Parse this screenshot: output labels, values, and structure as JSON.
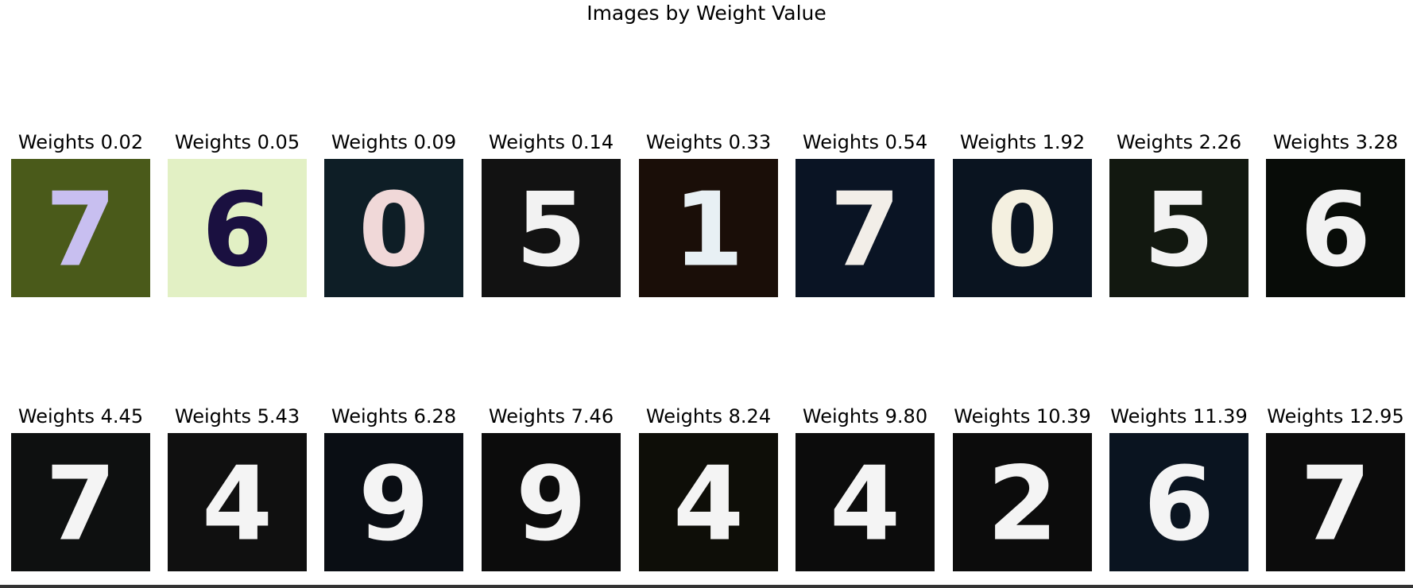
{
  "title": "Images by Weight Value",
  "panels": [
    {
      "label": "Weights 0.02",
      "digit": "7",
      "bg": "#4a5a1a",
      "fg": "#c8bff0"
    },
    {
      "label": "Weights 0.05",
      "digit": "6",
      "bg": "#e2f0c4",
      "fg": "#1a1040"
    },
    {
      "label": "Weights 0.09",
      "digit": "0",
      "bg": "#0e1e26",
      "fg": "#f0d8d8"
    },
    {
      "label": "Weights 0.14",
      "digit": "5",
      "bg": "#121212",
      "fg": "#f2f2f2"
    },
    {
      "label": "Weights 0.33",
      "digit": "1",
      "bg": "#1a0e08",
      "fg": "#e8f0f4"
    },
    {
      "label": "Weights 0.54",
      "digit": "7",
      "bg": "#0a1424",
      "fg": "#f2eee8"
    },
    {
      "label": "Weights 1.92",
      "digit": "0",
      "bg": "#0a1420",
      "fg": "#f4f0e0"
    },
    {
      "label": "Weights 2.26",
      "digit": "5",
      "bg": "#121810",
      "fg": "#f2f2f2"
    },
    {
      "label": "Weights 3.28",
      "digit": "6",
      "bg": "#080c08",
      "fg": "#f2f2f2"
    },
    {
      "label": "Weights 4.45",
      "digit": "7",
      "bg": "#0e1010",
      "fg": "#f4f4f4"
    },
    {
      "label": "Weights 5.43",
      "digit": "4",
      "bg": "#101010",
      "fg": "#f4f4f4"
    },
    {
      "label": "Weights 6.28",
      "digit": "9",
      "bg": "#0a0e14",
      "fg": "#f4f4f4"
    },
    {
      "label": "Weights 7.46",
      "digit": "9",
      "bg": "#0c0c0c",
      "fg": "#f4f4f4"
    },
    {
      "label": "Weights 8.24",
      "digit": "4",
      "bg": "#0e0e08",
      "fg": "#f4f4f4"
    },
    {
      "label": "Weights 9.80",
      "digit": "4",
      "bg": "#0c0c0c",
      "fg": "#f4f4f4"
    },
    {
      "label": "Weights 10.39",
      "digit": "2",
      "bg": "#0c0c0c",
      "fg": "#f4f4f4"
    },
    {
      "label": "Weights 11.39",
      "digit": "6",
      "bg": "#0a1420",
      "fg": "#f4f4f4"
    },
    {
      "label": "Weights 12.95",
      "digit": "7",
      "bg": "#0c0c0c",
      "fg": "#f4f4f4"
    }
  ]
}
